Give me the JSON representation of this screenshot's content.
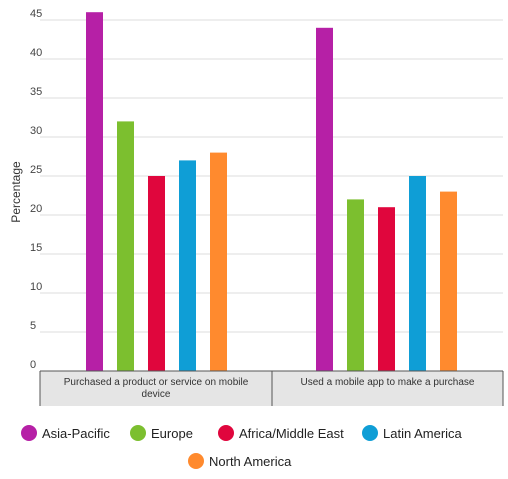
{
  "chart_data": {
    "type": "bar",
    "ylabel": "Percentage",
    "ylim": [
      0,
      45
    ],
    "yticks": [
      0,
      5,
      10,
      15,
      20,
      25,
      30,
      35,
      40,
      45
    ],
    "grid": true,
    "legend_position": "bottom",
    "categories": [
      "Purchased a product or service on mobile device",
      "Used a mobile app to make a purchase"
    ],
    "category_lines": [
      [
        "Purchased a product or service on mobile",
        "device"
      ],
      [
        "Used a mobile app to make a purchase"
      ]
    ],
    "series": [
      {
        "name": "Asia-Pacific",
        "color": "#b620a6",
        "values": [
          46,
          44
        ]
      },
      {
        "name": "Europe",
        "color": "#7cbf2f",
        "values": [
          32,
          22
        ]
      },
      {
        "name": "Africa/Middle East",
        "color": "#e0063d",
        "values": [
          25,
          21
        ]
      },
      {
        "name": "Latin America",
        "color": "#0f9ed6",
        "values": [
          27,
          25
        ]
      },
      {
        "name": "North America",
        "color": "#ff8a2e",
        "values": [
          28,
          23
        ]
      }
    ]
  }
}
